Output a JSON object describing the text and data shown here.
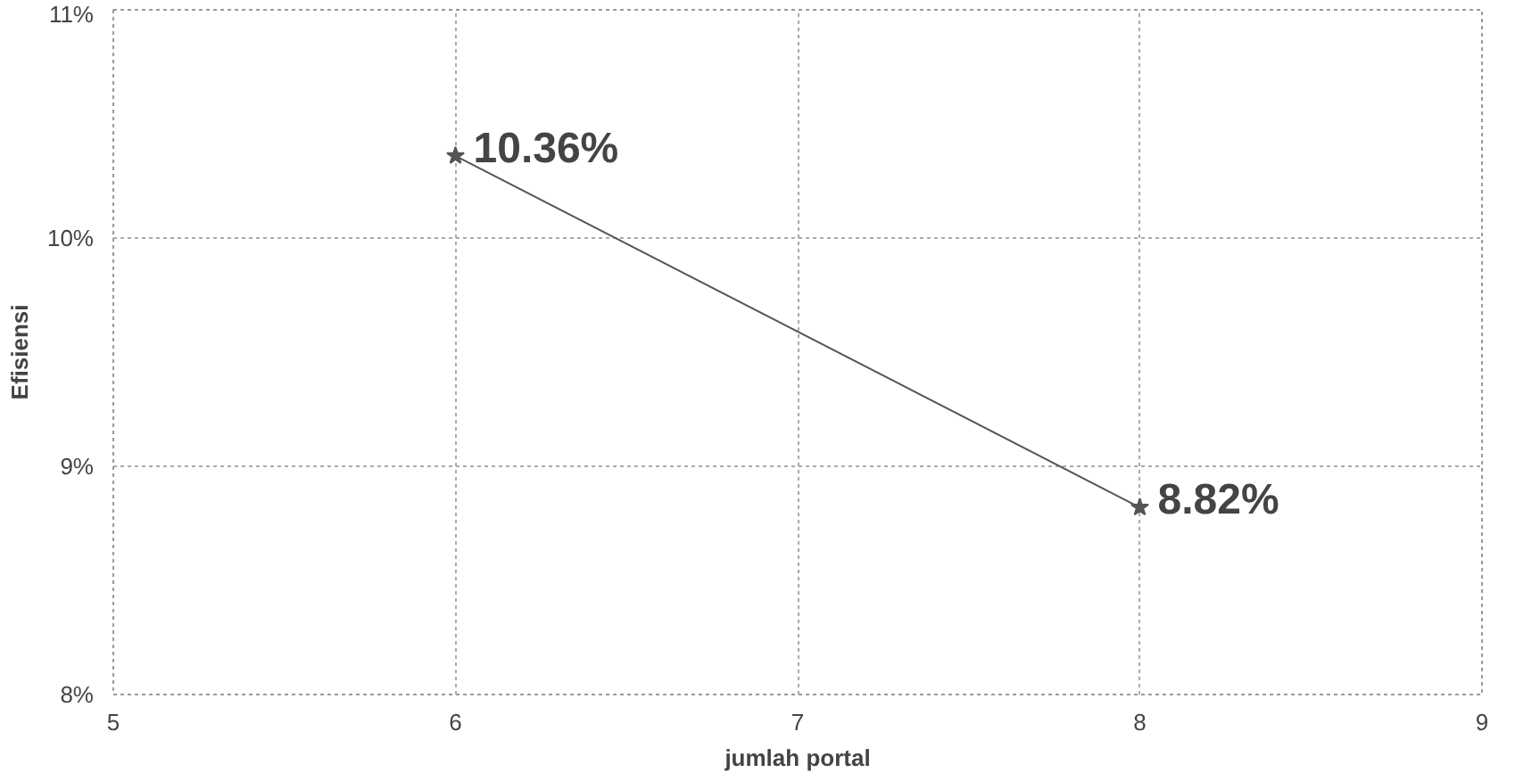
{
  "chart_data": {
    "type": "line",
    "xlabel": "jumlah portal",
    "ylabel": "Efisiensi",
    "x": [
      6,
      8
    ],
    "series": [
      {
        "color": "#555555",
        "values": [
          10.36,
          8.82
        ],
        "value_labels": [
          "10.36%",
          "8.82%"
        ]
      }
    ],
    "xlim": [
      5,
      9
    ],
    "xticks": [
      5,
      6,
      7,
      8,
      9
    ],
    "ylim": [
      8,
      11
    ],
    "yticks": [
      {
        "value": 8,
        "label": "8%"
      },
      {
        "value": 9,
        "label": "9%"
      },
      {
        "value": 10,
        "label": "10%"
      },
      {
        "value": 11,
        "label": "11%"
      }
    ],
    "grid": true,
    "marker": "star",
    "line_style": "solid"
  }
}
